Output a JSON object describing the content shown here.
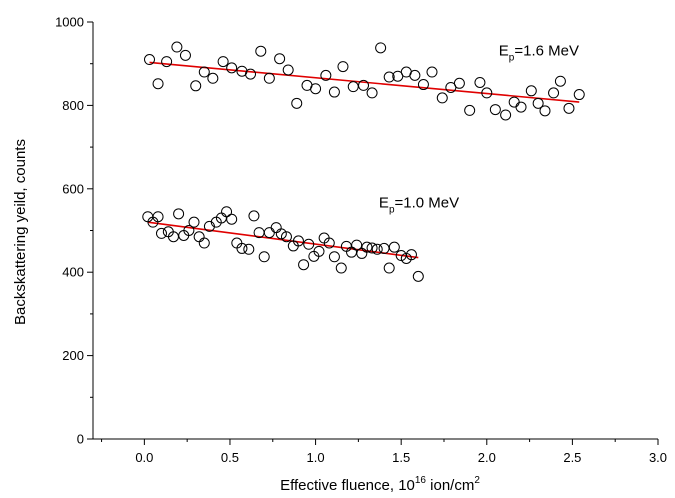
{
  "chart_data": {
    "type": "scatter",
    "title": "",
    "xlabel": {
      "main": "Effective fluence, 10",
      "exp": "16",
      "unit": " ion/cm",
      "unit_exp": "2"
    },
    "ylabel": "Backskattering yeild, counts",
    "xlim": [
      -0.3,
      3.0
    ],
    "ylim": [
      0,
      1000
    ],
    "xticks": [
      0.0,
      0.5,
      1.0,
      1.5,
      2.0,
      2.5,
      3.0
    ],
    "xtick_labels": [
      "0.0",
      "0.5",
      "1.0",
      "1.5",
      "2.0",
      "2.5",
      "3.0"
    ],
    "yticks": [
      0,
      200,
      400,
      600,
      800,
      1000
    ],
    "ytick_labels": [
      "0",
      "200",
      "400",
      "600",
      "800",
      "1000"
    ],
    "marker": "open-circle",
    "fit_color": "#e00000",
    "grid": false,
    "series": [
      {
        "name": "",
        "points": [
          [
            0.03,
            910
          ],
          [
            0.08,
            852
          ],
          [
            0.13,
            905
          ],
          [
            0.19,
            940
          ],
          [
            0.24,
            920
          ],
          [
            0.3,
            847
          ],
          [
            0.35,
            880
          ],
          [
            0.4,
            865
          ],
          [
            0.46,
            905
          ],
          [
            0.51,
            890
          ],
          [
            0.57,
            882
          ],
          [
            0.62,
            875
          ],
          [
            0.68,
            930
          ],
          [
            0.73,
            865
          ],
          [
            0.79,
            912
          ],
          [
            0.84,
            885
          ],
          [
            0.89,
            805
          ],
          [
            0.95,
            848
          ],
          [
            1.0,
            840
          ],
          [
            1.06,
            872
          ],
          [
            1.11,
            832
          ],
          [
            1.16,
            893
          ],
          [
            1.22,
            845
          ],
          [
            1.28,
            848
          ],
          [
            1.33,
            830
          ],
          [
            1.38,
            938
          ],
          [
            1.43,
            868
          ],
          [
            1.48,
            870
          ],
          [
            1.53,
            880
          ],
          [
            1.58,
            872
          ],
          [
            1.63,
            850
          ],
          [
            1.68,
            880
          ],
          [
            1.74,
            818
          ],
          [
            1.79,
            843
          ],
          [
            1.84,
            853
          ],
          [
            1.9,
            788
          ],
          [
            1.96,
            855
          ],
          [
            2.0,
            830
          ],
          [
            2.05,
            790
          ],
          [
            2.11,
            777
          ],
          [
            2.16,
            808
          ],
          [
            2.2,
            796
          ],
          [
            2.26,
            835
          ],
          [
            2.3,
            805
          ],
          [
            2.34,
            787
          ],
          [
            2.39,
            830
          ],
          [
            2.43,
            858
          ],
          [
            2.48,
            793
          ],
          [
            2.54,
            826
          ]
        ],
        "fit": [
          [
            0.03,
            903
          ],
          [
            2.54,
            808
          ]
        ]
      },
      {
        "name": "",
        "points": [
          [
            0.02,
            533
          ],
          [
            0.05,
            520
          ],
          [
            0.08,
            533
          ],
          [
            0.1,
            493
          ],
          [
            0.14,
            497
          ],
          [
            0.17,
            485
          ],
          [
            0.2,
            540
          ],
          [
            0.23,
            488
          ],
          [
            0.26,
            500
          ],
          [
            0.29,
            520
          ],
          [
            0.32,
            485
          ],
          [
            0.35,
            470
          ],
          [
            0.38,
            510
          ],
          [
            0.42,
            520
          ],
          [
            0.45,
            530
          ],
          [
            0.48,
            545
          ],
          [
            0.51,
            527
          ],
          [
            0.54,
            470
          ],
          [
            0.57,
            457
          ],
          [
            0.61,
            455
          ],
          [
            0.64,
            535
          ],
          [
            0.67,
            495
          ],
          [
            0.7,
            437
          ],
          [
            0.73,
            495
          ],
          [
            0.77,
            507
          ],
          [
            0.8,
            492
          ],
          [
            0.83,
            485
          ],
          [
            0.87,
            463
          ],
          [
            0.9,
            475
          ],
          [
            0.93,
            418
          ],
          [
            0.96,
            467
          ],
          [
            0.99,
            438
          ],
          [
            1.02,
            450
          ],
          [
            1.05,
            482
          ],
          [
            1.08,
            470
          ],
          [
            1.11,
            437
          ],
          [
            1.15,
            410
          ],
          [
            1.18,
            462
          ],
          [
            1.21,
            448
          ],
          [
            1.24,
            465
          ],
          [
            1.27,
            445
          ],
          [
            1.3,
            460
          ],
          [
            1.33,
            458
          ],
          [
            1.36,
            455
          ],
          [
            1.4,
            457
          ],
          [
            1.43,
            410
          ],
          [
            1.46,
            460
          ],
          [
            1.5,
            440
          ],
          [
            1.53,
            433
          ],
          [
            1.56,
            442
          ],
          [
            1.6,
            390
          ]
        ],
        "fit": [
          [
            0.02,
            520
          ],
          [
            1.6,
            435
          ]
        ]
      }
    ],
    "annotations": [
      {
        "base": "E",
        "sub": "p",
        "rest": "=1.6 MeV",
        "x": 2.07,
        "y": 920
      },
      {
        "base": "E",
        "sub": "p",
        "rest": "=1.0 MeV",
        "x": 1.37,
        "y": 555
      }
    ]
  }
}
